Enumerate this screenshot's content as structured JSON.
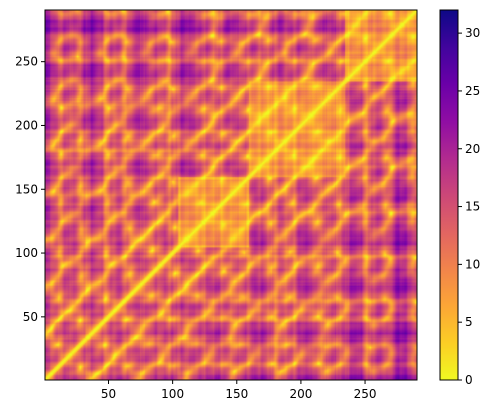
{
  "chart_data": {
    "type": "heatmap",
    "description_matrix": "symmetric pairwise distance map, zero along diagonal",
    "n": 290,
    "x": {
      "min": 1,
      "max": 290,
      "ticks": [
        50,
        100,
        150,
        200,
        250
      ],
      "tick_labels": [
        "50",
        "100",
        "150",
        "200",
        "250"
      ]
    },
    "y": {
      "min": 1,
      "max": 290,
      "ticks": [
        50,
        100,
        150,
        200,
        250
      ],
      "tick_labels": [
        "50",
        "100",
        "150",
        "200",
        "250"
      ],
      "origin": "lower"
    },
    "colorbar": {
      "colormap": "plasma_r",
      "min": 0,
      "max": 32,
      "ticks": [
        0,
        5,
        10,
        15,
        20,
        25,
        30
      ],
      "tick_labels": [
        "0",
        "5",
        "10",
        "15",
        "20",
        "25",
        "30"
      ]
    },
    "domains": [
      {
        "start": 1,
        "end": 105
      },
      {
        "start": 105,
        "end": 160
      },
      {
        "start": 160,
        "end": 235
      },
      {
        "start": 235,
        "end": 290
      }
    ],
    "colors": {
      "low": "#f0f921",
      "mid": "#e16462",
      "high": "#0d0887"
    }
  }
}
